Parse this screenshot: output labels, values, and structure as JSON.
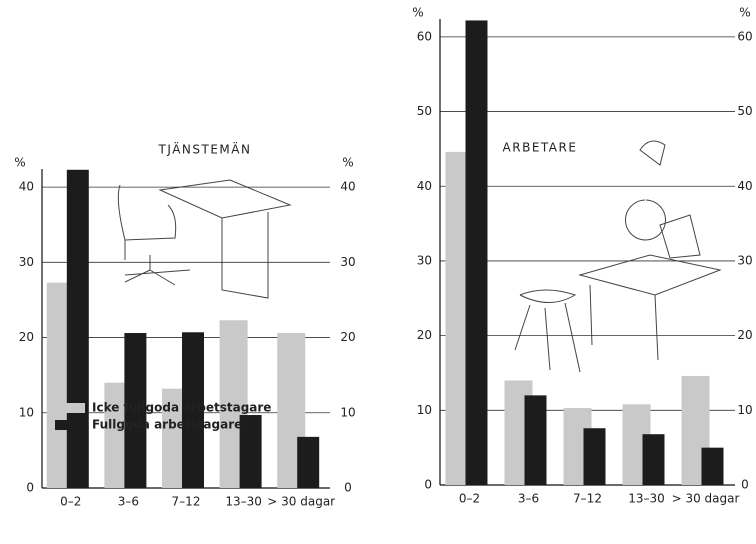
{
  "chart_data": [
    {
      "type": "bar",
      "title": "TJÄNSTEMÄN",
      "y_label": "%",
      "categories": [
        "0–2",
        "3–6",
        "7–12",
        "13–30",
        "> 30 dagar"
      ],
      "series": [
        {
          "name": "Icke fullgoda arbetstagare",
          "color": "#c9c9c9",
          "values": [
            27.3,
            14,
            13.2,
            22.3,
            20.6
          ]
        },
        {
          "name": "Fullgoda arbetstagare",
          "color": "#1c1c1c",
          "values": [
            42.3,
            20.6,
            20.7,
            9.7,
            6.8
          ]
        }
      ],
      "ylim": [
        0,
        44
      ],
      "yticks": [
        0,
        10,
        20,
        30,
        40
      ],
      "grid": true
    },
    {
      "type": "bar",
      "title": "ARBETARE",
      "y_label": "%",
      "categories": [
        "0–2",
        "3–6",
        "7–12",
        "13–30",
        "> 30 dagar"
      ],
      "series": [
        {
          "color": "#c9c9c9",
          "values": [
            44.6,
            14,
            10.3,
            10.8,
            14.6
          ]
        },
        {
          "color": "#1c1c1c",
          "values": [
            62.2,
            12,
            7.6,
            6.8,
            5
          ]
        }
      ],
      "ylim": [
        0,
        64
      ],
      "yticks": [
        0,
        10,
        20,
        30,
        40,
        50,
        60
      ],
      "grid": true
    }
  ]
}
